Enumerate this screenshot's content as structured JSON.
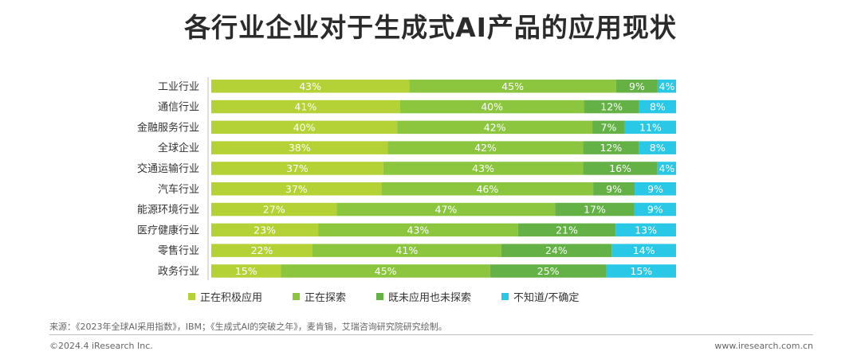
{
  "title": "各行业企业对于生成式AI产品的应用现状",
  "chart_data": {
    "type": "bar",
    "orientation": "horizontal",
    "stacked": true,
    "percent": true,
    "categories": [
      "工业行业",
      "通信行业",
      "金融服务行业",
      "全球企业",
      "交通运输行业",
      "汽车行业",
      "能源环境行业",
      "医疗健康行业",
      "零售行业",
      "政务行业"
    ],
    "series": [
      {
        "name": "正在积极应用",
        "color": "#b4d135",
        "values": [
          43,
          41,
          40,
          38,
          37,
          37,
          27,
          23,
          22,
          15
        ]
      },
      {
        "name": "正在探索",
        "color": "#8cc63f",
        "values": [
          45,
          40,
          42,
          42,
          43,
          46,
          47,
          43,
          41,
          45
        ]
      },
      {
        "name": "既未应用也未探索",
        "color": "#64b145",
        "values": [
          9,
          12,
          7,
          12,
          16,
          9,
          17,
          21,
          24,
          25
        ]
      },
      {
        "name": "不知道/不确定",
        "color": "#28c8e6",
        "values": [
          4,
          8,
          11,
          8,
          4,
          9,
          9,
          13,
          14,
          15
        ]
      }
    ],
    "value_suffix": "%",
    "xlim": [
      0,
      100
    ],
    "grid": false,
    "legend_position": "bottom"
  },
  "footer": {
    "source": "来源：《2023年全球AI采用指数》，IBM；《生成式AI的突破之年》，麦肯锡，艾瑞咨询研究院研究绘制。",
    "copyright": "©2024.4 iResearch Inc.",
    "website": "www.iresearch.com.cn"
  }
}
